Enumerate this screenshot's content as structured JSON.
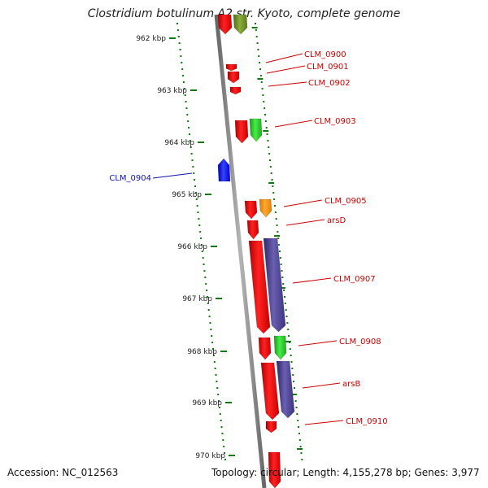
{
  "title": "Clostridium botulinum A2 str. Kyoto, complete genome",
  "accession": "Accession: NC_012563",
  "summary": "Topology: circular; Length: 4,155,278 bp; Genes: 3,977",
  "colors": {
    "red": "#ee1111",
    "green": "#33cc33",
    "olive": "#6b8e23",
    "orange": "#ff9911",
    "blue": "#1111dd",
    "purple": "#4a3f8f",
    "label_red": "#cc0000",
    "label_blue": "#1111aa",
    "tick_green": "#117711",
    "axis_gray": "#888888"
  },
  "ticks": [
    {
      "label": "962 kbp"
    },
    {
      "label": "963 kbp"
    },
    {
      "label": "964 kbp"
    },
    {
      "label": "965 kbp"
    },
    {
      "label": "966 kbp"
    },
    {
      "label": "967 kbp"
    },
    {
      "label": "968 kbp"
    },
    {
      "label": "969 kbp"
    },
    {
      "label": "970 kbp"
    }
  ],
  "gene_labels": [
    {
      "name": "CLM_0900",
      "color": "#cc0000"
    },
    {
      "name": "CLM_0901",
      "color": "#cc0000"
    },
    {
      "name": "CLM_0902",
      "color": "#cc0000"
    },
    {
      "name": "CLM_0903",
      "color": "#cc0000"
    },
    {
      "name": "CLM_0904",
      "color": "#1111aa"
    },
    {
      "name": "CLM_0905",
      "color": "#cc0000"
    },
    {
      "name": "arsD",
      "color": "#cc0000"
    },
    {
      "name": "CLM_0907",
      "color": "#cc0000"
    },
    {
      "name": "CLM_0908",
      "color": "#cc0000"
    },
    {
      "name": "arsB",
      "color": "#cc0000"
    },
    {
      "name": "CLM_0910",
      "color": "#cc0000"
    }
  ]
}
